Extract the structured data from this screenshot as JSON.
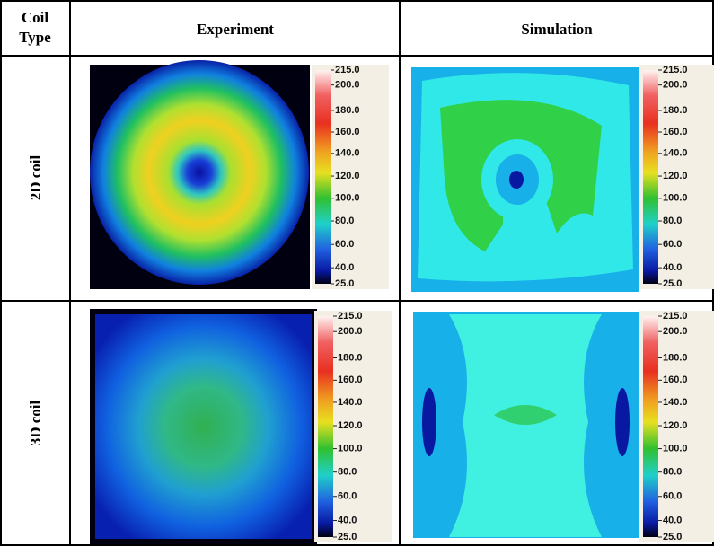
{
  "table": {
    "header": {
      "coil_type": [
        "Coil",
        "Type"
      ],
      "experiment": "Experiment",
      "simulation": "Simulation"
    },
    "rows": [
      {
        "label": "2D coil"
      },
      {
        "label": "3D coil"
      }
    ],
    "colorbar_labels": [
      "215.0",
      "200.0",
      "180.0",
      "160.0",
      "140.0",
      "120.0",
      "100.0",
      "80.0",
      "60.0",
      "40.0",
      "25.0"
    ]
  }
}
